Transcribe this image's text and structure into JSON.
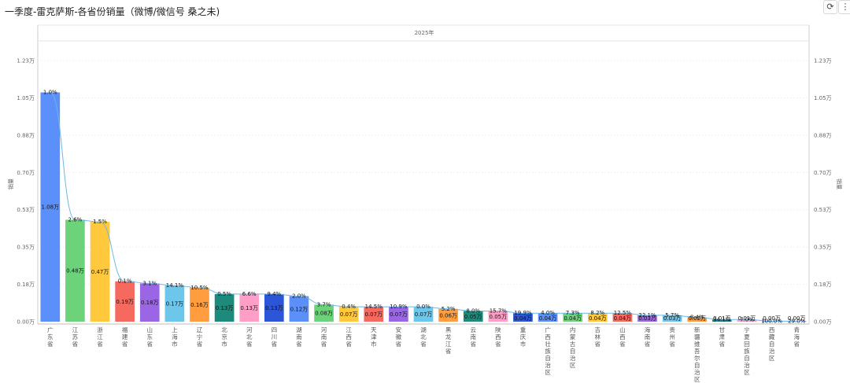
{
  "header": {
    "title": "一季度-雷克萨斯-各省份销量（微博/微信号 桑之未)",
    "refresh_icon": "refresh-icon",
    "more_icon": "more-vertical-icon"
  },
  "chart_data": {
    "type": "bar",
    "group_label": "2025年",
    "ylabel": "销量",
    "y2label": "销量",
    "yticks": [
      "0.00万",
      "0.18万",
      "0.35万",
      "0.53万",
      "0.70万",
      "0.88万",
      "1.05万",
      "1.23万"
    ],
    "ylim": [
      0,
      1.23
    ],
    "categories": [
      "广东省",
      "江苏省",
      "浙江省",
      "福建省",
      "山东省",
      "上海市",
      "辽宁省",
      "北京市",
      "河北省",
      "四川省",
      "湖南省",
      "河南省",
      "江西省",
      "天津市",
      "安徽省",
      "湖北省",
      "黑龙江省",
      "云南省",
      "陕西省",
      "重庆市",
      "广西壮族自治区",
      "内蒙古自治区",
      "吉林省",
      "山西省",
      "海南省",
      "贵州省",
      "新疆维吾尔自治区",
      "甘肃省",
      "宁夏回族自治区",
      "西藏自治区",
      "青海省"
    ],
    "values": [
      1.08,
      0.48,
      0.47,
      0.19,
      0.18,
      0.17,
      0.16,
      0.13,
      0.13,
      0.13,
      0.12,
      0.08,
      0.07,
      0.07,
      0.07,
      0.07,
      0.06,
      0.05,
      0.05,
      0.04,
      0.04,
      0.04,
      0.04,
      0.04,
      0.03,
      0.03,
      0.02,
      0.01,
      0.01,
      0.0,
      0.0
    ],
    "value_labels": [
      "1.08万",
      "0.48万",
      "0.47万",
      "0.19万",
      "0.18万",
      "0.17万",
      "0.16万",
      "0.13万",
      "0.13万",
      "0.13万",
      "0.12万",
      "0.08万",
      "0.07万",
      "0.07万",
      "0.07万",
      "0.07万",
      "0.06万",
      "0.05万",
      "0.05万",
      "0.04万",
      "0.04万",
      "0.04万",
      "0.04万",
      "0.04万",
      "0.03万",
      "0.03万",
      "0.02万",
      "0.01万",
      "0.01万",
      "0.00万",
      "0.00万"
    ],
    "pct_labels": [
      "1.0%",
      "2.6%",
      "1.5%",
      "0.1%",
      "3.1%",
      "14.1%",
      "10.5%",
      "0.5%",
      "6.6%",
      "9.4%",
      "2.0%",
      "3.7%",
      "0.4%",
      "14.5%",
      "10.9%",
      "0.0%",
      "5.2%",
      "8.0%",
      "15.7%",
      "19.9%",
      "4.0%",
      "7.3%",
      "8.2%",
      "12.5%",
      "22.1%",
      "5.7%",
      "8.4%",
      "34.1%",
      "7.0%",
      "100.0%",
      "29.0%"
    ],
    "colors": [
      "#5B8FF9",
      "#6DD37B",
      "#FFC83D",
      "#F5695F",
      "#9A66E4",
      "#6CC7EB",
      "#FF9D3F",
      "#1E8A7C",
      "#FF9EC6",
      "#2D55D8",
      "#5B8FF9",
      "#6DD37B",
      "#FFC83D",
      "#F5695F",
      "#9A66E4",
      "#6CC7EB",
      "#FF9D3F",
      "#1E8A7C",
      "#FF9EC6",
      "#2D55D8",
      "#5B8FF9",
      "#6DD37B",
      "#FFC83D",
      "#F5695F",
      "#9A66E4",
      "#6CC7EB",
      "#FF9D3F",
      "#1E8A7C",
      "#FF9EC6",
      "#2D55D8",
      "#5B8FF9"
    ],
    "line_color": "#6BB8E8",
    "grid": true
  }
}
